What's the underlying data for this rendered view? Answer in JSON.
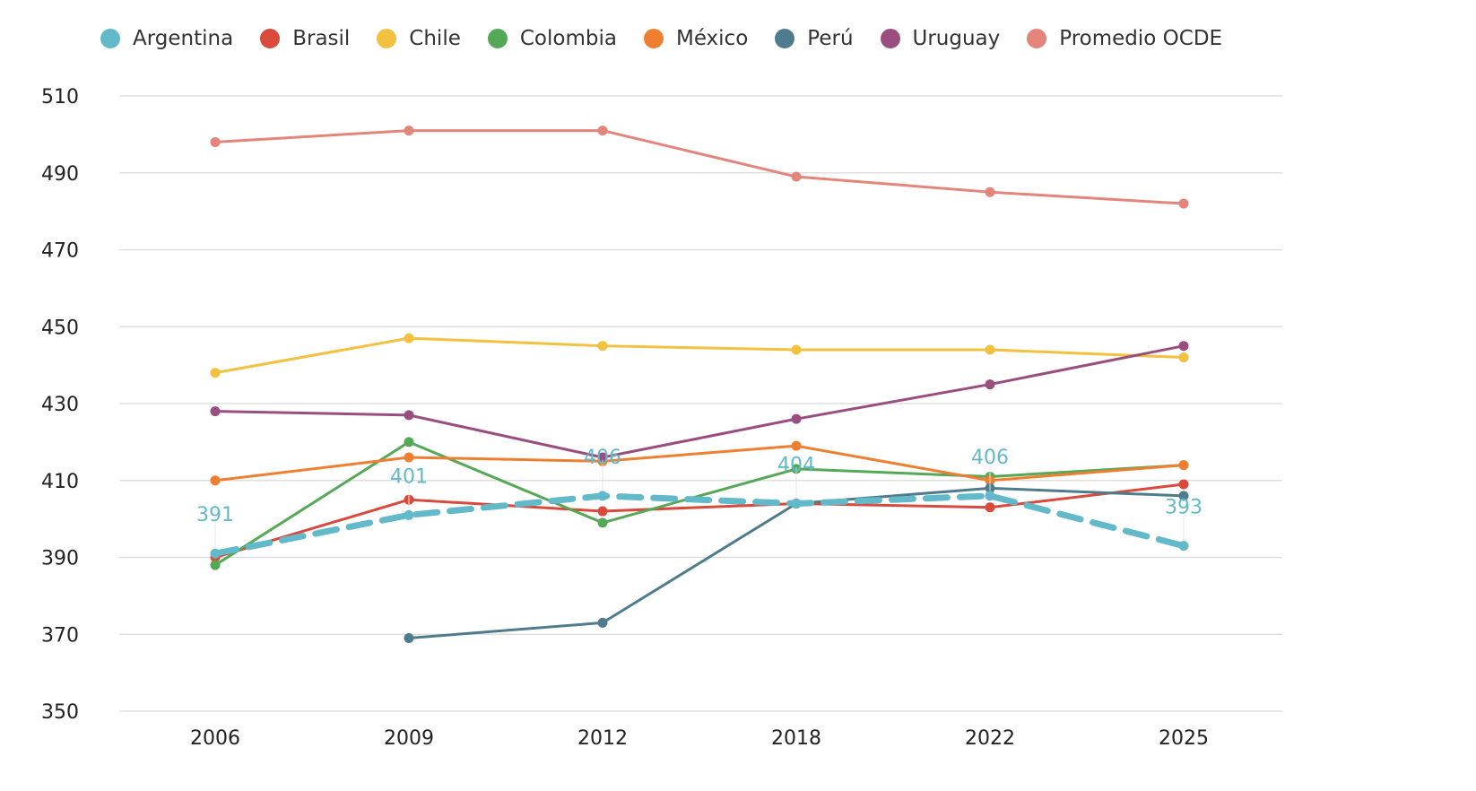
{
  "colors": {
    "grid": "#d9d9d9",
    "axis_text": "#222222"
  },
  "chart_data": {
    "type": "line",
    "title": "",
    "xlabel": "",
    "ylabel": "",
    "categories": [
      "2006",
      "2009",
      "2012",
      "2018",
      "2022",
      "2025"
    ],
    "ylim": [
      350,
      510
    ],
    "yticks": [
      350,
      370,
      390,
      410,
      430,
      450,
      470,
      490,
      510
    ],
    "grid": true,
    "legend_position": "top-left",
    "series": [
      {
        "name": "Argentina",
        "color": "#62b9c9",
        "dashed": true,
        "show_labels": true,
        "values": [
          391,
          401,
          406,
          404,
          406,
          393
        ],
        "labels": [
          "391",
          "401",
          "406",
          "404",
          "406",
          "393"
        ]
      },
      {
        "name": "Brasil",
        "color": "#d9493c",
        "values": [
          390,
          405,
          402,
          404,
          403,
          409
        ]
      },
      {
        "name": "Chile",
        "color": "#f2c13f",
        "values": [
          438,
          447,
          445,
          444,
          444,
          442
        ]
      },
      {
        "name": "Colombia",
        "color": "#55a956",
        "values": [
          388,
          420,
          399,
          413,
          411,
          414
        ]
      },
      {
        "name": "México",
        "color": "#ef7f30",
        "values": [
          410,
          416,
          415,
          419,
          410,
          414
        ]
      },
      {
        "name": "Perú",
        "color": "#4e7c8e",
        "values": [
          null,
          369,
          373,
          404,
          408,
          406
        ]
      },
      {
        "name": "Uruguay",
        "color": "#9a4e80",
        "values": [
          428,
          427,
          416,
          426,
          435,
          445
        ]
      },
      {
        "name": "Promedio OCDE",
        "color": "#e5847a",
        "values": [
          498,
          501,
          501,
          489,
          485,
          482
        ]
      }
    ]
  }
}
